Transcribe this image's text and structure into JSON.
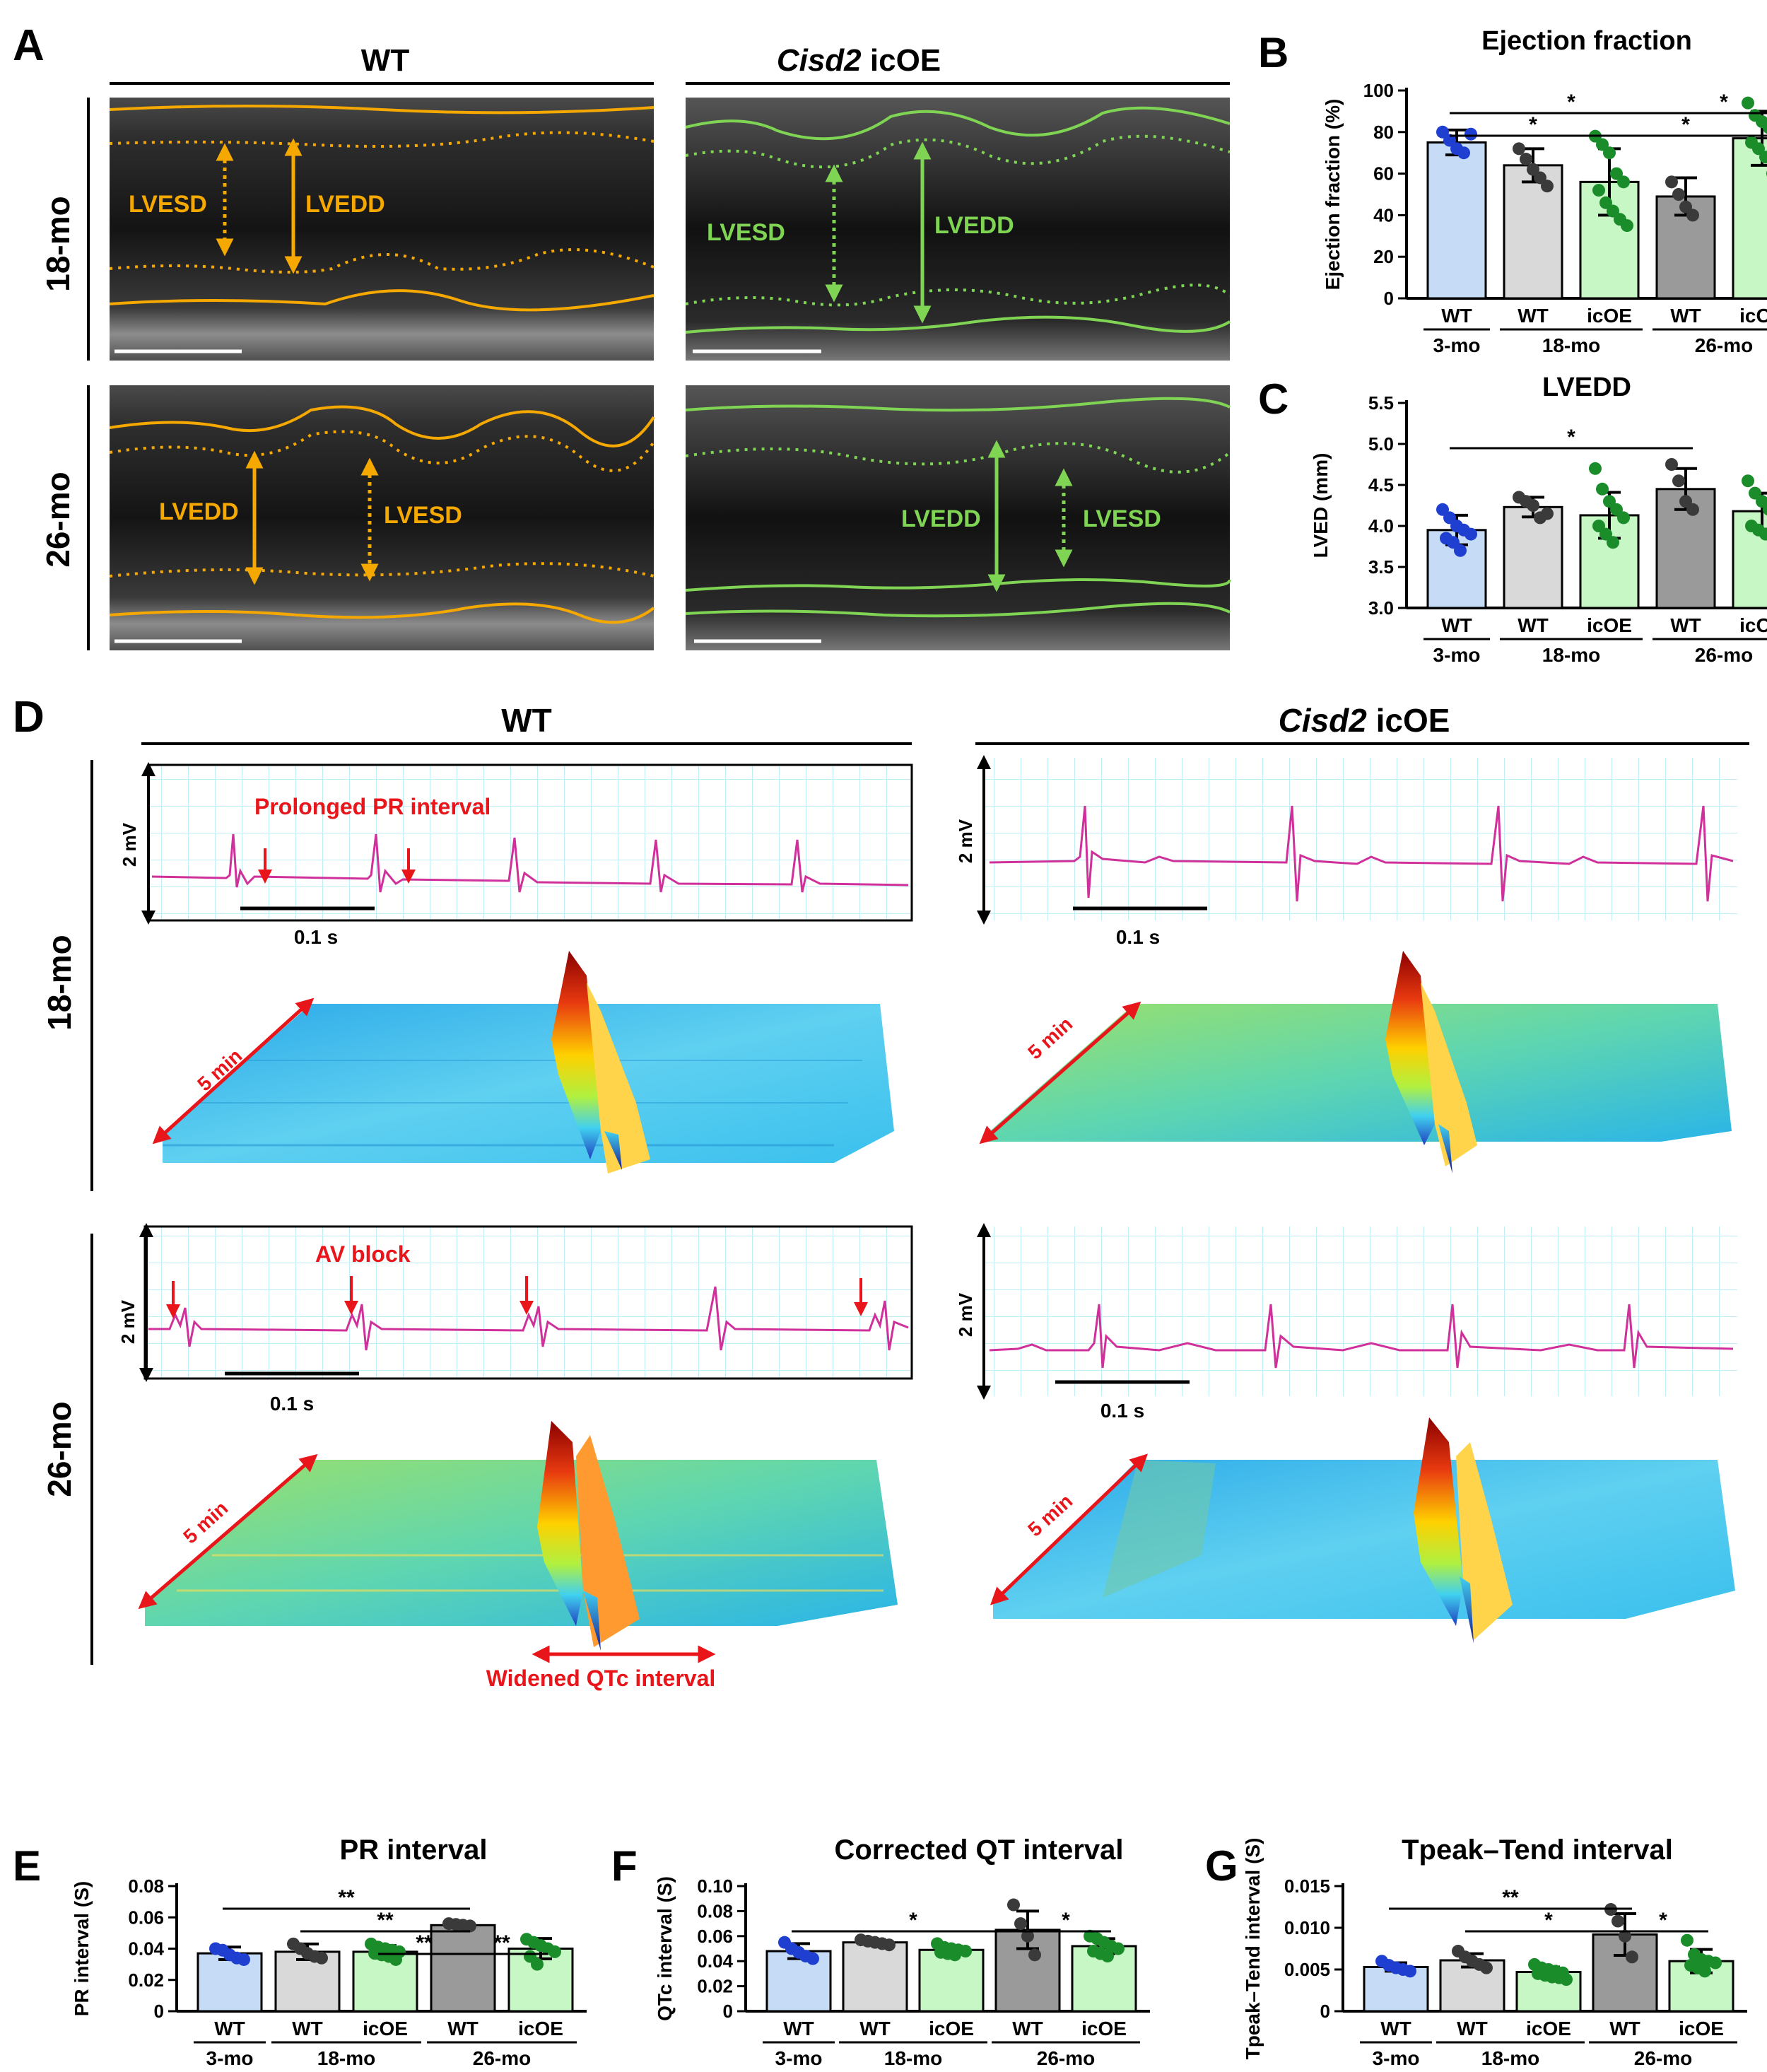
{
  "panels": {
    "A": {
      "letter": "A",
      "col_wt": "WT",
      "col_cisd2": "Cisd2",
      "col_cisd2_suffix": " icOE",
      "row_18": "18-mo",
      "row_26": "26-mo",
      "lvesd": "LVESD",
      "lvedd": "LVEDD",
      "wt_color": "#f5a800",
      "oe_color": "#80d454"
    },
    "D": {
      "letter": "D",
      "col_wt": "WT",
      "col_cisd2": "Cisd2",
      "col_cisd2_suffix": " icOE",
      "row_18": "18-mo",
      "row_26": "26-mo",
      "mv": "2 mV",
      "time": "0.1 s",
      "duration": "5 min",
      "prolonged_pr": "Prolonged PR interval",
      "av_block": "AV block",
      "widened_qtc": "Widened QTc interval",
      "annotation_color": "#e8151b",
      "ecg_color": "#d0309a"
    }
  },
  "colors": {
    "wt_3mo": "#c6dcf6",
    "wt_18mo": "#d9d9d9",
    "icoe": "#c8f7c6",
    "wt_26mo": "#9a9a9b",
    "dot_blue": "#1f3fd0",
    "dot_dark": "#3a3a3a",
    "dot_green": "#1a8c2a"
  },
  "chart_data": [
    {
      "id": "B",
      "letter": "B",
      "type": "bar",
      "title": "Ejection fraction",
      "ylabel": "Ejection fraction (%)",
      "ylim": [
        0,
        100
      ],
      "yticks": [
        "0",
        "20",
        "40",
        "60",
        "80",
        "100"
      ],
      "categories": [
        "WT",
        "WT",
        "icOE",
        "WT",
        "icOE"
      ],
      "groups": [
        {
          "label": "3-mo",
          "from": 0,
          "to": 0
        },
        {
          "label": "18-mo",
          "from": 1,
          "to": 2
        },
        {
          "label": "26-mo",
          "from": 3,
          "to": 4
        }
      ],
      "values": [
        75,
        64,
        56,
        49,
        77
      ],
      "sd": [
        6,
        8,
        16,
        9,
        13
      ],
      "points": [
        [
          80,
          76,
          72,
          70,
          79
        ],
        [
          72,
          67,
          62,
          58,
          54
        ],
        [
          78,
          74,
          70,
          60,
          56,
          52,
          46,
          42,
          38,
          35
        ],
        [
          56,
          50,
          44,
          40
        ],
        [
          94,
          88,
          85,
          82,
          78,
          75,
          72,
          68,
          60
        ]
      ],
      "sig": [
        {
          "from": 0,
          "to": 3,
          "label": "*",
          "level": 1
        },
        {
          "from": 3,
          "to": 4,
          "label": "*",
          "level": 1
        },
        {
          "from": 0,
          "to": 2,
          "label": "*",
          "level": 0
        },
        {
          "from": 2,
          "to": 4,
          "label": "*",
          "level": 0
        }
      ]
    },
    {
      "id": "C",
      "letter": "C",
      "type": "bar",
      "title": "LVEDD",
      "ylabel": "LVED (mm)",
      "ylim": [
        3.0,
        5.5
      ],
      "yticks": [
        "3.0",
        "3.5",
        "4.0",
        "4.5",
        "5.0",
        "5.5"
      ],
      "categories": [
        "WT",
        "WT",
        "icOE",
        "WT",
        "icOE"
      ],
      "groups": [
        {
          "label": "3-mo",
          "from": 0,
          "to": 0
        },
        {
          "label": "18-mo",
          "from": 1,
          "to": 2
        },
        {
          "label": "26-mo",
          "from": 3,
          "to": 4
        }
      ],
      "values": [
        3.95,
        4.23,
        4.13,
        4.45,
        4.18
      ],
      "sd": [
        0.18,
        0.12,
        0.28,
        0.25,
        0.22
      ],
      "points": [
        [
          4.2,
          4.1,
          4.0,
          3.95,
          3.9,
          3.85,
          3.8,
          3.7
        ],
        [
          4.35,
          4.3,
          4.25,
          4.1,
          4.15
        ],
        [
          4.7,
          4.45,
          4.3,
          4.2,
          4.1,
          4.0,
          3.9,
          3.8
        ],
        [
          4.75,
          4.55,
          4.3,
          4.2
        ],
        [
          4.55,
          4.4,
          4.3,
          4.2,
          4.1,
          4.0,
          3.95,
          3.9
        ]
      ],
      "sig": [
        {
          "from": 0,
          "to": 3,
          "label": "*",
          "level": 0
        }
      ]
    },
    {
      "id": "E",
      "letter": "E",
      "type": "bar",
      "title": "PR interval",
      "ylabel": "PR interval (S)",
      "ylim": [
        0,
        0.08
      ],
      "yticks": [
        "0",
        "0.02",
        "0.04",
        "0.06",
        "0.08"
      ],
      "categories": [
        "WT",
        "WT",
        "icOE",
        "WT",
        "icOE"
      ],
      "groups": [
        {
          "label": "3-mo",
          "from": 0,
          "to": 0
        },
        {
          "label": "18-mo",
          "from": 1,
          "to": 2
        },
        {
          "label": "26-mo",
          "from": 3,
          "to": 4
        }
      ],
      "values": [
        0.037,
        0.038,
        0.038,
        0.055,
        0.04
      ],
      "sd": [
        0.004,
        0.005,
        0.004,
        0.0015,
        0.0065
      ],
      "points": [
        [
          0.04,
          0.039,
          0.036,
          0.034,
          0.033
        ],
        [
          0.043,
          0.04,
          0.037,
          0.035,
          0.034
        ],
        [
          0.043,
          0.041,
          0.04,
          0.039,
          0.038,
          0.037,
          0.036,
          0.035,
          0.033
        ],
        [
          0.056,
          0.0555,
          0.055,
          0.0545
        ],
        [
          0.046,
          0.044,
          0.042,
          0.04,
          0.038,
          0.035,
          0.03
        ]
      ],
      "sig": [
        {
          "from": 0,
          "to": 3,
          "label": "**",
          "level": 2
        },
        {
          "from": 1,
          "to": 3,
          "label": "**",
          "level": 1
        },
        {
          "from": 2,
          "to": 3,
          "label": "**",
          "level": 0
        },
        {
          "from": 3,
          "to": 4,
          "label": "**",
          "level": 0
        }
      ]
    },
    {
      "id": "F",
      "letter": "F",
      "type": "bar",
      "title": "Corrected QT interval",
      "ylabel": "QTc interval (S)",
      "ylim": [
        0,
        0.1
      ],
      "yticks": [
        "0",
        "0.02",
        "0.04",
        "0.06",
        "0.08",
        "0.10"
      ],
      "categories": [
        "WT",
        "WT",
        "icOE",
        "WT",
        "icOE"
      ],
      "groups": [
        {
          "label": "3-mo",
          "from": 0,
          "to": 0
        },
        {
          "label": "18-mo",
          "from": 1,
          "to": 2
        },
        {
          "label": "26-mo",
          "from": 3,
          "to": 4
        }
      ],
      "values": [
        0.048,
        0.055,
        0.049,
        0.065,
        0.052
      ],
      "sd": [
        0.006,
        0.002,
        0.003,
        0.015,
        0.006
      ],
      "points": [
        [
          0.055,
          0.05,
          0.047,
          0.044,
          0.042
        ],
        [
          0.057,
          0.056,
          0.055,
          0.054,
          0.053
        ],
        [
          0.054,
          0.051,
          0.05,
          0.049,
          0.048,
          0.047,
          0.046,
          0.045
        ],
        [
          0.085,
          0.07,
          0.06,
          0.045
        ],
        [
          0.06,
          0.058,
          0.055,
          0.052,
          0.05,
          0.048,
          0.046,
          0.044
        ]
      ],
      "sig": [
        {
          "from": 0,
          "to": 3,
          "label": "*",
          "level": 0
        },
        {
          "from": 3,
          "to": 4,
          "label": "*",
          "level": 0
        }
      ]
    },
    {
      "id": "G",
      "letter": "G",
      "type": "bar",
      "title": "Tpeak–Tend interval",
      "ylabel": "Tpeak–Tend interval (S)",
      "ylim": [
        0,
        0.015
      ],
      "yticks": [
        "0",
        "0.005",
        "0.010",
        "0.015"
      ],
      "categories": [
        "WT",
        "WT",
        "icOE",
        "WT",
        "icOE"
      ],
      "groups": [
        {
          "label": "3-mo",
          "from": 0,
          "to": 0
        },
        {
          "label": "18-mo",
          "from": 1,
          "to": 2
        },
        {
          "label": "26-mo",
          "from": 3,
          "to": 4
        }
      ],
      "values": [
        0.0053,
        0.0061,
        0.0047,
        0.0092,
        0.006
      ],
      "sd": [
        0.0005,
        0.0008,
        0.0006,
        0.0025,
        0.0014
      ],
      "points": [
        [
          0.006,
          0.0055,
          0.0052,
          0.005,
          0.0048
        ],
        [
          0.0072,
          0.0065,
          0.006,
          0.0056,
          0.0052
        ],
        [
          0.0056,
          0.0052,
          0.005,
          0.0048,
          0.0046,
          0.0045,
          0.0043,
          0.0041,
          0.004,
          0.0038
        ],
        [
          0.0122,
          0.0108,
          0.009,
          0.0065
        ],
        [
          0.0085,
          0.0068,
          0.0062,
          0.006,
          0.0058,
          0.0055,
          0.0052,
          0.0048
        ]
      ],
      "sig": [
        {
          "from": 0,
          "to": 3,
          "label": "**",
          "level": 1
        },
        {
          "from": 1,
          "to": 3,
          "label": "*",
          "level": 0
        },
        {
          "from": 3,
          "to": 4,
          "label": "*",
          "level": 0
        }
      ]
    }
  ]
}
